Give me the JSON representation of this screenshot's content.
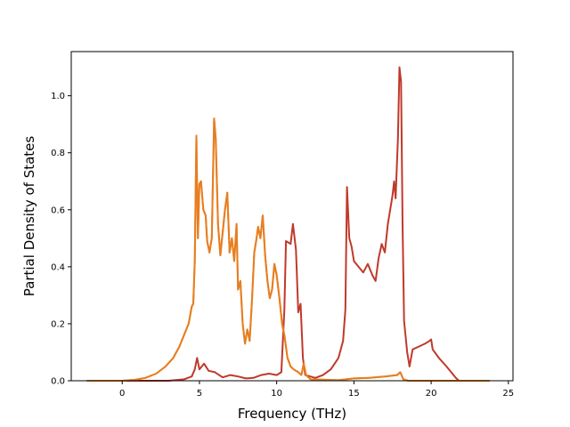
{
  "chart_data": {
    "type": "line",
    "title": "",
    "xlabel": "Frequency (THz)",
    "ylabel": "Partial Density of States",
    "xlim": [
      -3.3,
      25.3
    ],
    "ylim": [
      0.0,
      1.155
    ],
    "xticks": [
      0,
      5,
      10,
      15,
      20,
      25
    ],
    "yticks": [
      0.0,
      0.2,
      0.4,
      0.6,
      0.8,
      1.0
    ],
    "xtick_labels": [
      "0",
      "5",
      "10",
      "15",
      "20",
      "25"
    ],
    "ytick_labels": [
      "0.0",
      "0.2",
      "0.4",
      "0.6",
      "0.8",
      "1.0"
    ],
    "grid": false,
    "legend": "none",
    "series": [
      {
        "color": "#c0392b",
        "points": [
          [
            -2.3,
            0.0
          ],
          [
            0.0,
            0.0
          ],
          [
            3.0,
            0.0
          ],
          [
            4.0,
            0.005
          ],
          [
            4.5,
            0.015
          ],
          [
            4.7,
            0.04
          ],
          [
            4.85,
            0.08
          ],
          [
            5.0,
            0.04
          ],
          [
            5.3,
            0.06
          ],
          [
            5.6,
            0.035
          ],
          [
            6.0,
            0.03
          ],
          [
            6.5,
            0.012
          ],
          [
            7.0,
            0.02
          ],
          [
            7.5,
            0.015
          ],
          [
            8.0,
            0.008
          ],
          [
            8.5,
            0.01
          ],
          [
            9.0,
            0.02
          ],
          [
            9.5,
            0.025
          ],
          [
            10.0,
            0.02
          ],
          [
            10.3,
            0.03
          ],
          [
            10.5,
            0.25
          ],
          [
            10.6,
            0.49
          ],
          [
            10.9,
            0.48
          ],
          [
            11.05,
            0.55
          ],
          [
            11.25,
            0.46
          ],
          [
            11.4,
            0.24
          ],
          [
            11.55,
            0.27
          ],
          [
            11.7,
            0.08
          ],
          [
            11.85,
            0.02
          ],
          [
            12.5,
            0.01
          ],
          [
            13.0,
            0.02
          ],
          [
            13.5,
            0.04
          ],
          [
            14.0,
            0.08
          ],
          [
            14.3,
            0.14
          ],
          [
            14.45,
            0.25
          ],
          [
            14.55,
            0.68
          ],
          [
            14.7,
            0.5
          ],
          [
            14.85,
            0.47
          ],
          [
            15.0,
            0.42
          ],
          [
            15.3,
            0.4
          ],
          [
            15.6,
            0.38
          ],
          [
            15.9,
            0.41
          ],
          [
            16.2,
            0.37
          ],
          [
            16.4,
            0.35
          ],
          [
            16.6,
            0.43
          ],
          [
            16.8,
            0.48
          ],
          [
            17.0,
            0.45
          ],
          [
            17.2,
            0.55
          ],
          [
            17.35,
            0.6
          ],
          [
            17.5,
            0.65
          ],
          [
            17.6,
            0.7
          ],
          [
            17.7,
            0.64
          ],
          [
            17.85,
            0.85
          ],
          [
            17.95,
            1.1
          ],
          [
            18.05,
            1.05
          ],
          [
            18.15,
            0.55
          ],
          [
            18.25,
            0.21
          ],
          [
            18.45,
            0.1
          ],
          [
            18.6,
            0.05
          ],
          [
            18.8,
            0.11
          ],
          [
            19.2,
            0.12
          ],
          [
            19.6,
            0.13
          ],
          [
            19.9,
            0.14
          ],
          [
            20.0,
            0.145
          ],
          [
            20.1,
            0.11
          ],
          [
            20.5,
            0.08
          ],
          [
            21.0,
            0.05
          ],
          [
            21.3,
            0.03
          ],
          [
            21.6,
            0.01
          ],
          [
            21.8,
            0.0
          ],
          [
            23.8,
            0.0
          ]
        ]
      },
      {
        "color": "#f0922b",
        "points": [
          [
            -2.3,
            0.0
          ],
          [
            0.0,
            0.0
          ],
          [
            0.8,
            0.003
          ],
          [
            1.5,
            0.01
          ],
          [
            2.2,
            0.025
          ],
          [
            2.8,
            0.05
          ],
          [
            3.3,
            0.08
          ],
          [
            3.7,
            0.12
          ],
          [
            4.0,
            0.16
          ],
          [
            4.3,
            0.2
          ],
          [
            4.5,
            0.26
          ],
          [
            4.6,
            0.27
          ],
          [
            4.7,
            0.42
          ],
          [
            4.8,
            0.86
          ],
          [
            4.9,
            0.5
          ],
          [
            5.0,
            0.69
          ],
          [
            5.1,
            0.7
          ],
          [
            5.25,
            0.6
          ],
          [
            5.4,
            0.58
          ],
          [
            5.5,
            0.49
          ],
          [
            5.65,
            0.45
          ],
          [
            5.8,
            0.5
          ],
          [
            5.95,
            0.92
          ],
          [
            6.05,
            0.85
          ],
          [
            6.2,
            0.55
          ],
          [
            6.35,
            0.44
          ],
          [
            6.5,
            0.52
          ],
          [
            6.65,
            0.6
          ],
          [
            6.8,
            0.66
          ],
          [
            6.95,
            0.45
          ],
          [
            7.1,
            0.5
          ],
          [
            7.25,
            0.42
          ],
          [
            7.4,
            0.55
          ],
          [
            7.5,
            0.32
          ],
          [
            7.65,
            0.35
          ],
          [
            7.8,
            0.2
          ],
          [
            7.95,
            0.13
          ],
          [
            8.1,
            0.18
          ],
          [
            8.25,
            0.14
          ],
          [
            8.4,
            0.28
          ],
          [
            8.55,
            0.45
          ],
          [
            8.7,
            0.5
          ],
          [
            8.8,
            0.54
          ],
          [
            8.95,
            0.5
          ],
          [
            9.1,
            0.58
          ],
          [
            9.25,
            0.44
          ],
          [
            9.4,
            0.35
          ],
          [
            9.55,
            0.29
          ],
          [
            9.7,
            0.32
          ],
          [
            9.85,
            0.41
          ],
          [
            10.0,
            0.37
          ],
          [
            10.2,
            0.28
          ],
          [
            10.35,
            0.2
          ],
          [
            10.5,
            0.16
          ],
          [
            10.7,
            0.08
          ],
          [
            10.9,
            0.05
          ],
          [
            11.1,
            0.04
          ],
          [
            11.4,
            0.03
          ],
          [
            11.6,
            0.02
          ],
          [
            11.75,
            0.06
          ],
          [
            11.9,
            0.02
          ],
          [
            12.2,
            0.005
          ],
          [
            14.0,
            0.002
          ],
          [
            15.0,
            0.008
          ],
          [
            16.0,
            0.01
          ],
          [
            17.0,
            0.015
          ],
          [
            17.8,
            0.02
          ],
          [
            18.0,
            0.03
          ],
          [
            18.2,
            0.005
          ],
          [
            18.5,
            0.0
          ],
          [
            23.8,
            0.0
          ]
        ]
      },
      {
        "color": "#e67e22",
        "points": [
          [
            -2.3,
            0.0
          ],
          [
            0.0,
            0.0
          ],
          [
            0.8,
            0.003
          ],
          [
            1.5,
            0.01
          ],
          [
            2.2,
            0.025
          ],
          [
            2.8,
            0.05
          ],
          [
            3.3,
            0.08
          ],
          [
            3.7,
            0.12
          ],
          [
            4.0,
            0.16
          ],
          [
            4.3,
            0.2
          ],
          [
            4.5,
            0.26
          ],
          [
            4.6,
            0.27
          ],
          [
            4.7,
            0.42
          ],
          [
            4.8,
            0.86
          ],
          [
            4.9,
            0.5
          ],
          [
            5.0,
            0.69
          ],
          [
            5.1,
            0.7
          ],
          [
            5.25,
            0.6
          ],
          [
            5.4,
            0.58
          ],
          [
            5.5,
            0.49
          ],
          [
            5.65,
            0.45
          ],
          [
            5.8,
            0.5
          ],
          [
            5.95,
            0.92
          ],
          [
            6.05,
            0.85
          ],
          [
            6.2,
            0.55
          ],
          [
            6.35,
            0.44
          ],
          [
            6.5,
            0.52
          ],
          [
            6.65,
            0.6
          ],
          [
            6.8,
            0.66
          ],
          [
            6.95,
            0.45
          ],
          [
            7.1,
            0.5
          ],
          [
            7.25,
            0.42
          ],
          [
            7.4,
            0.55
          ],
          [
            7.5,
            0.32
          ],
          [
            7.65,
            0.35
          ],
          [
            7.8,
            0.2
          ],
          [
            7.95,
            0.13
          ],
          [
            8.1,
            0.18
          ],
          [
            8.25,
            0.14
          ],
          [
            8.4,
            0.28
          ],
          [
            8.55,
            0.45
          ],
          [
            8.7,
            0.5
          ],
          [
            8.8,
            0.54
          ],
          [
            8.95,
            0.5
          ],
          [
            9.1,
            0.58
          ],
          [
            9.25,
            0.44
          ],
          [
            9.4,
            0.35
          ],
          [
            9.55,
            0.29
          ],
          [
            9.7,
            0.32
          ],
          [
            9.85,
            0.41
          ],
          [
            10.0,
            0.37
          ],
          [
            10.2,
            0.28
          ],
          [
            10.35,
            0.2
          ],
          [
            10.5,
            0.16
          ],
          [
            10.7,
            0.08
          ],
          [
            10.9,
            0.05
          ],
          [
            11.1,
            0.04
          ],
          [
            11.4,
            0.03
          ],
          [
            11.6,
            0.02
          ],
          [
            11.75,
            0.06
          ],
          [
            11.9,
            0.02
          ],
          [
            12.2,
            0.005
          ],
          [
            14.0,
            0.002
          ],
          [
            15.0,
            0.008
          ],
          [
            16.0,
            0.01
          ],
          [
            17.0,
            0.015
          ],
          [
            17.8,
            0.02
          ],
          [
            18.0,
            0.03
          ],
          [
            18.2,
            0.005
          ],
          [
            18.5,
            0.0
          ],
          [
            23.8,
            0.0
          ]
        ]
      }
    ]
  }
}
